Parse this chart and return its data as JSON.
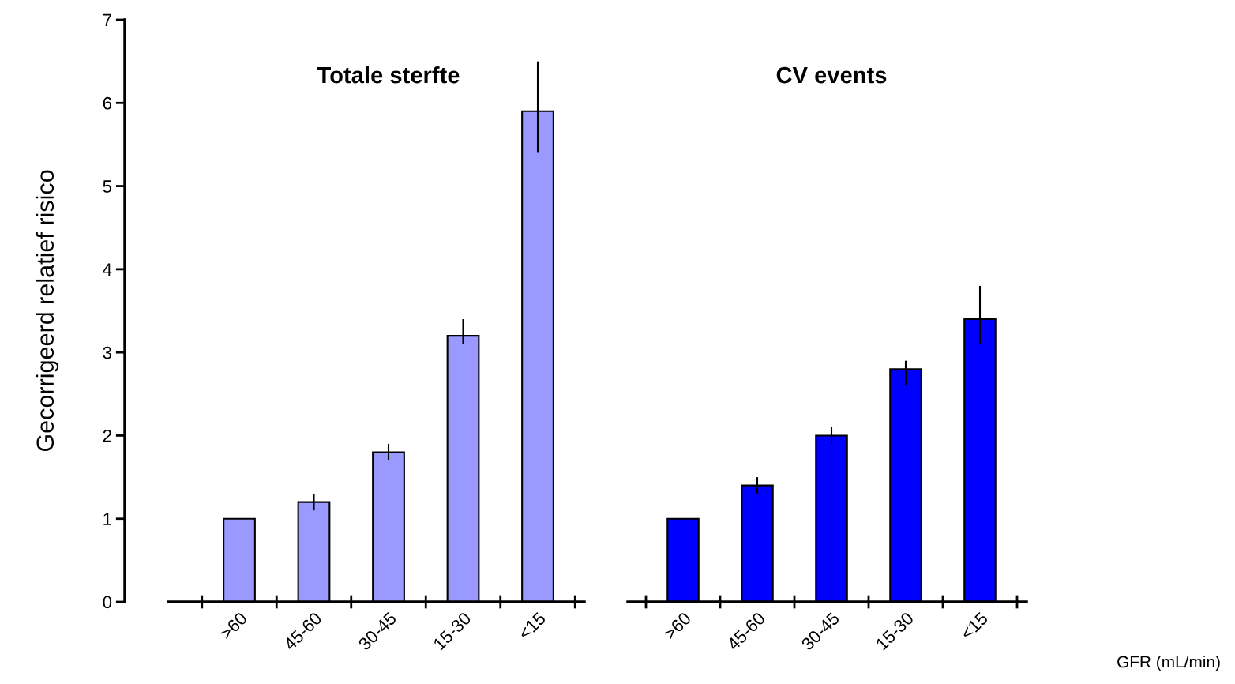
{
  "chart_data": [
    {
      "type": "bar",
      "title": "Totale sterfte",
      "ylabel": "Gecorrigeerd relatief risico",
      "categories": [
        ">60",
        "45-60",
        "30-45",
        "15-30",
        "<15"
      ],
      "values": [
        1,
        1.2,
        1.8,
        3.2,
        5.9
      ],
      "errors": [
        null,
        [
          1.1,
          1.3
        ],
        [
          1.7,
          1.9
        ],
        [
          3.1,
          3.4
        ],
        [
          5.4,
          6.5
        ]
      ],
      "color": "#9999ff",
      "ylim": [
        0,
        7
      ],
      "yticks": [
        0,
        1,
        2,
        3,
        4,
        5,
        6,
        7
      ],
      "grid": false,
      "legend": false
    },
    {
      "type": "bar",
      "title": "CV events",
      "xlabel": "GFR (mL/min)",
      "categories": [
        ">60",
        "45-60",
        "30-45",
        "15-30",
        "<15"
      ],
      "values": [
        1,
        1.4,
        2.0,
        2.8,
        3.4
      ],
      "errors": [
        null,
        [
          1.3,
          1.5
        ],
        [
          1.9,
          2.1
        ],
        [
          2.6,
          2.9
        ],
        [
          3.1,
          3.8
        ]
      ],
      "color": "#0000ff",
      "ylim": [
        0,
        7
      ],
      "yticks": [
        0,
        1,
        2,
        3,
        4,
        5,
        6,
        7
      ],
      "tick_labels": "x",
      "grid": false,
      "legend": false
    }
  ]
}
